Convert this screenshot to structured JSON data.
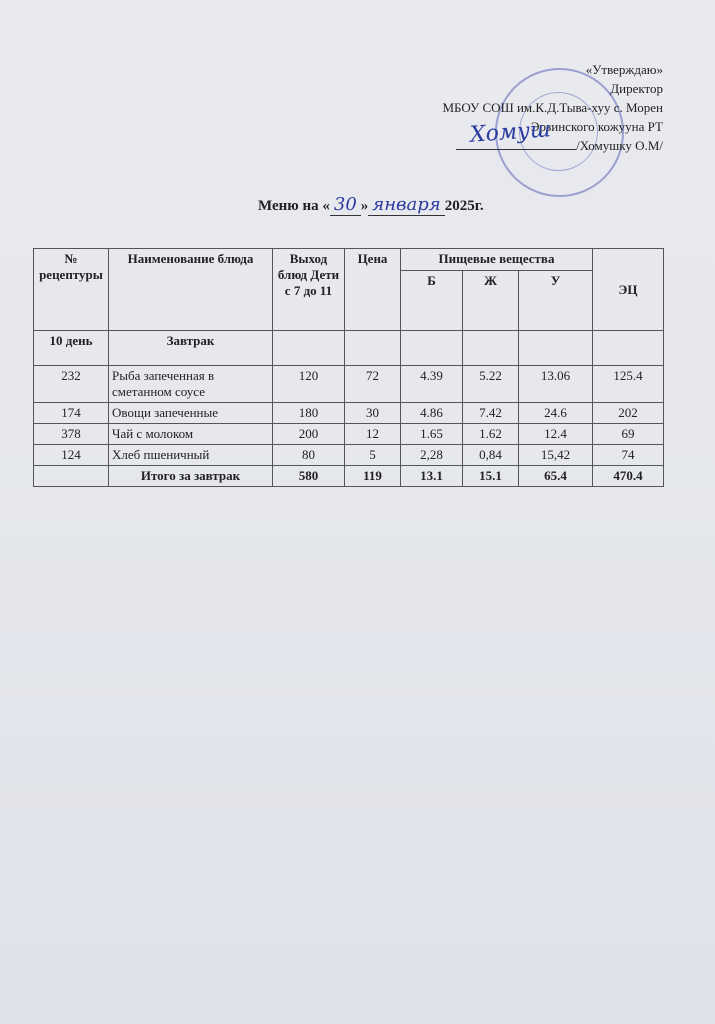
{
  "approval": {
    "line1": "«Утверждаю»",
    "line2": "Директор",
    "line3": "МБОУ СОШ им.К.Д.Тыва-хуу с. Морен",
    "line4": "Эрзинского кожууна РТ",
    "line5": "/Хомушку О.М/"
  },
  "title": {
    "prefix": "Меню на «",
    "day": "30",
    "mid": "»",
    "month": "января",
    "suffix": "2025г."
  },
  "table": {
    "headers": {
      "recipe": "№ рецептуры",
      "dish": "Наименование блюда",
      "yield": "Выход блюд Дети с 7 до 11",
      "price": "Цена",
      "nutrients": "Пищевые вещества",
      "b": "Б",
      "zh": "Ж",
      "u": "У",
      "ec": "ЭЦ"
    },
    "section": {
      "day": "10 день",
      "meal": "Завтрак"
    },
    "rows": [
      {
        "recipe": "232",
        "dish": "Рыба запеченная в сметанном соусе",
        "yield": "120",
        "price": "72",
        "b": "4.39",
        "zh": "5.22",
        "u": "13.06",
        "ec": "125.4"
      },
      {
        "recipe": "174",
        "dish": "Овощи запеченные",
        "yield": "180",
        "price": "30",
        "b": "4.86",
        "zh": "7.42",
        "u": "24.6",
        "ec": "202"
      },
      {
        "recipe": "378",
        "dish": "Чай с молоком",
        "yield": "200",
        "price": "12",
        "b": "1.65",
        "zh": "1.62",
        "u": "12.4",
        "ec": "69"
      },
      {
        "recipe": "124",
        "dish": "Хлеб пшеничный",
        "yield": "80",
        "price": "5",
        "b": "2,28",
        "zh": "0,84",
        "u": "15,42",
        "ec": "74"
      }
    ],
    "total": {
      "label": "Итого за завтрак",
      "yield": "580",
      "price": "119",
      "b": "13.1",
      "zh": "15.1",
      "u": "65.4",
      "ec": "470.4"
    }
  }
}
